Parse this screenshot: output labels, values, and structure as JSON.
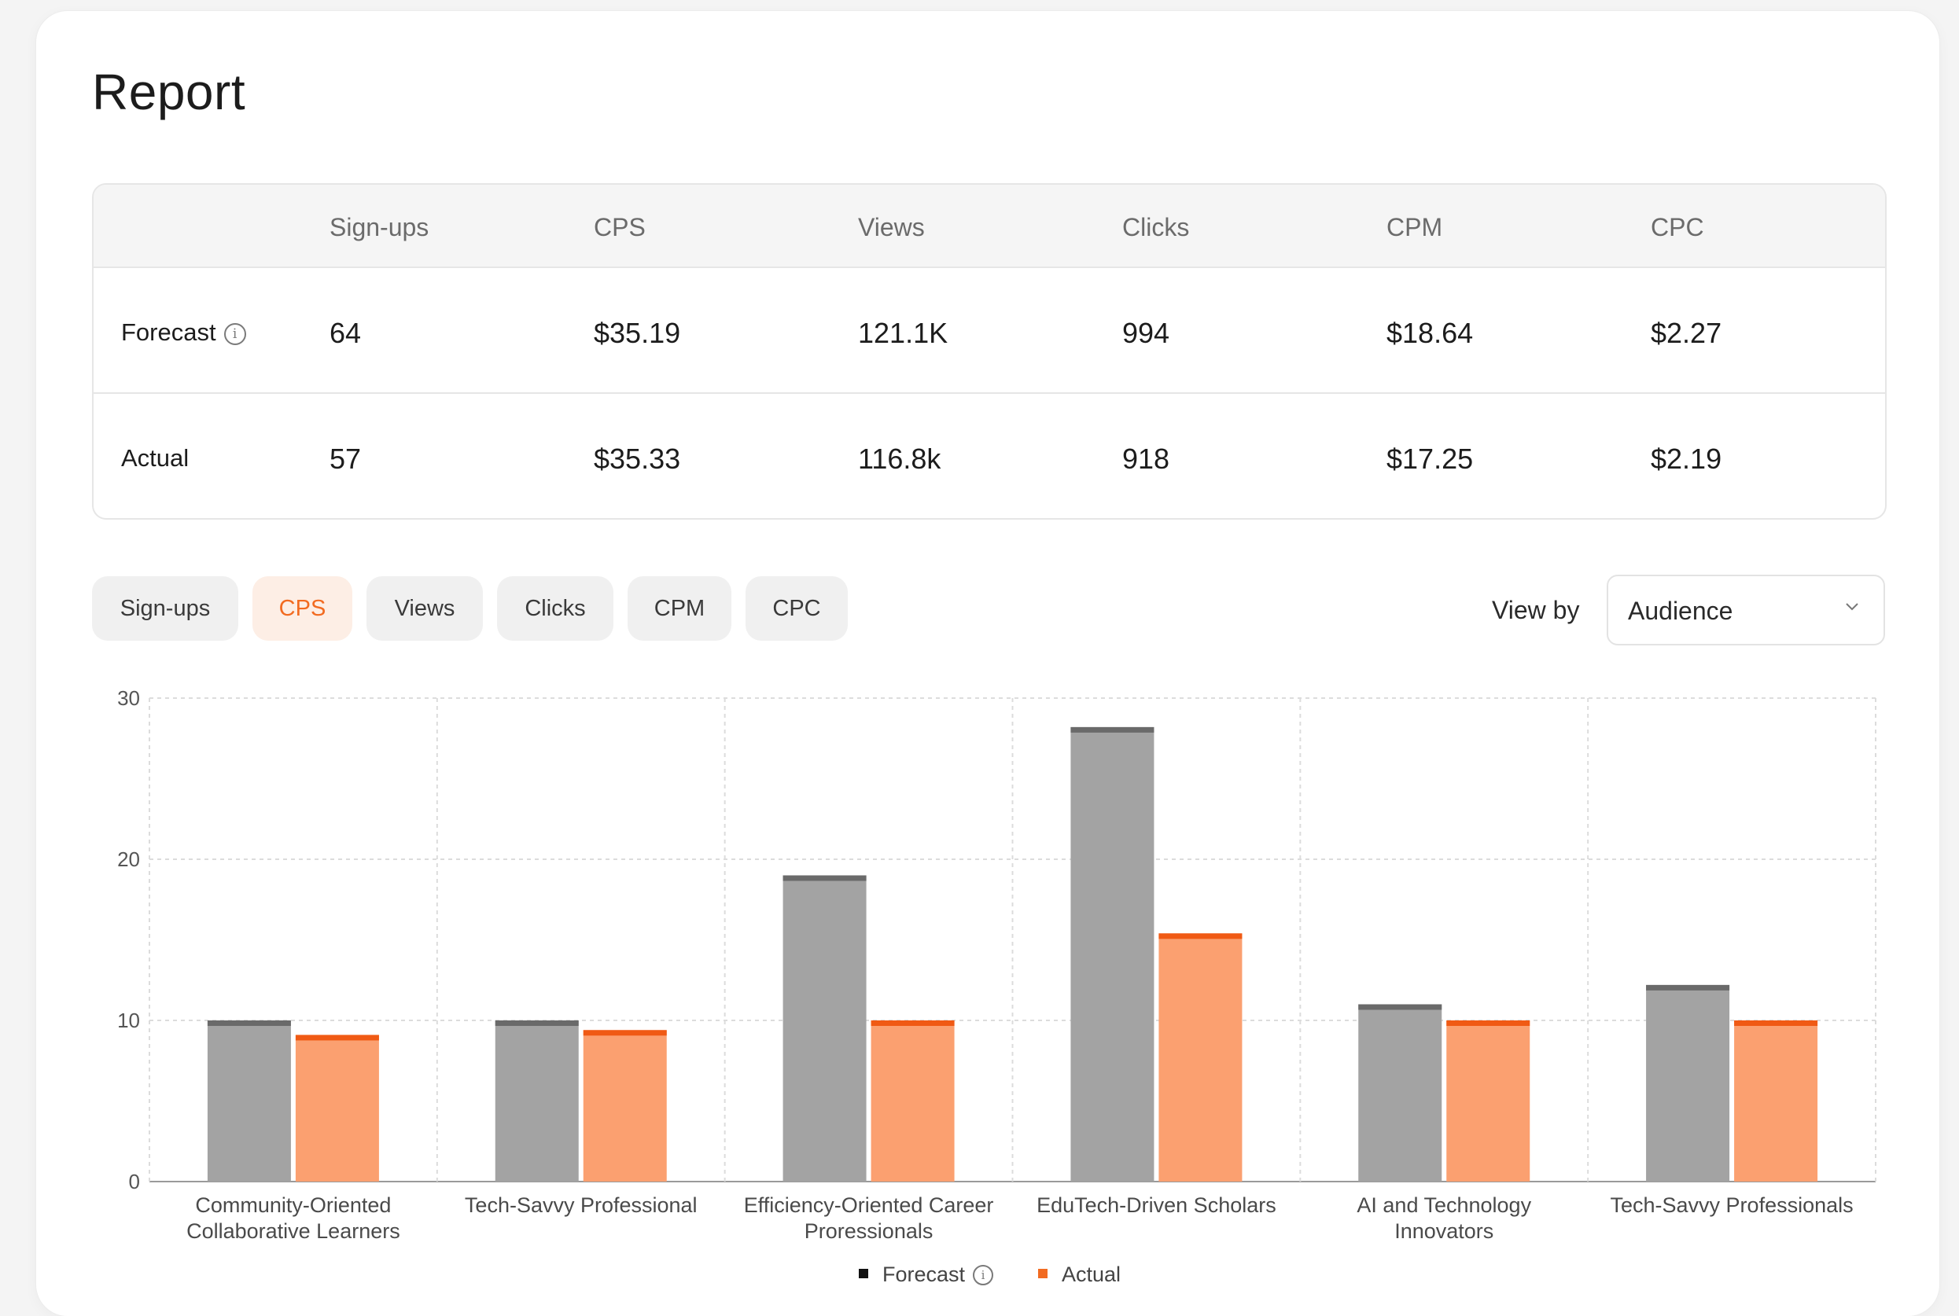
{
  "title": "Report",
  "metrics": {
    "headers": [
      "Sign-ups",
      "CPS",
      "Views",
      "Clicks",
      "CPM",
      "CPC"
    ],
    "rows": [
      {
        "label": "Forecast",
        "values": [
          "64",
          "$35.19",
          "121.1K",
          "994",
          "$18.64",
          "$2.27"
        ]
      },
      {
        "label": "Actual",
        "values": [
          "57",
          "$35.33",
          "116.8k",
          "918",
          "$17.25",
          "$2.19"
        ]
      }
    ]
  },
  "tabs": [
    {
      "label": "Sign-ups",
      "active": false
    },
    {
      "label": "CPS",
      "active": true
    },
    {
      "label": "Views",
      "active": false
    },
    {
      "label": "Clicks",
      "active": false
    },
    {
      "label": "CPM",
      "active": false
    },
    {
      "label": "CPC",
      "active": false
    }
  ],
  "view_by": {
    "label": "View by",
    "value": "Audience"
  },
  "colors": {
    "accent": "#f26b21",
    "forecast": "#a3a3a3",
    "forecast_cap": "#6a6a6a",
    "actual": "#fba070",
    "actual_cap": "#f05a14"
  },
  "chart_data": {
    "type": "bar",
    "categories": [
      [
        "Community-Oriented",
        "Collaborative Learners"
      ],
      [
        "Tech-Savvy Professional"
      ],
      [
        "Efficiency-Oriented Career",
        "Proressionals"
      ],
      [
        "EduTech-Driven Scholars"
      ],
      [
        "AI and Technology",
        "Innovators"
      ],
      [
        "Tech-Savvy Professionals"
      ]
    ],
    "series": [
      {
        "name": "Forecast",
        "values": [
          10,
          10,
          19,
          28.2,
          11,
          12.2
        ]
      },
      {
        "name": "Actual",
        "values": [
          9.1,
          9.4,
          10,
          15.4,
          10,
          10
        ]
      }
    ],
    "ylim": [
      0,
      30
    ],
    "yticks": [
      "0",
      "10",
      "20",
      "30"
    ],
    "grid": true,
    "legend_position": "bottom"
  }
}
